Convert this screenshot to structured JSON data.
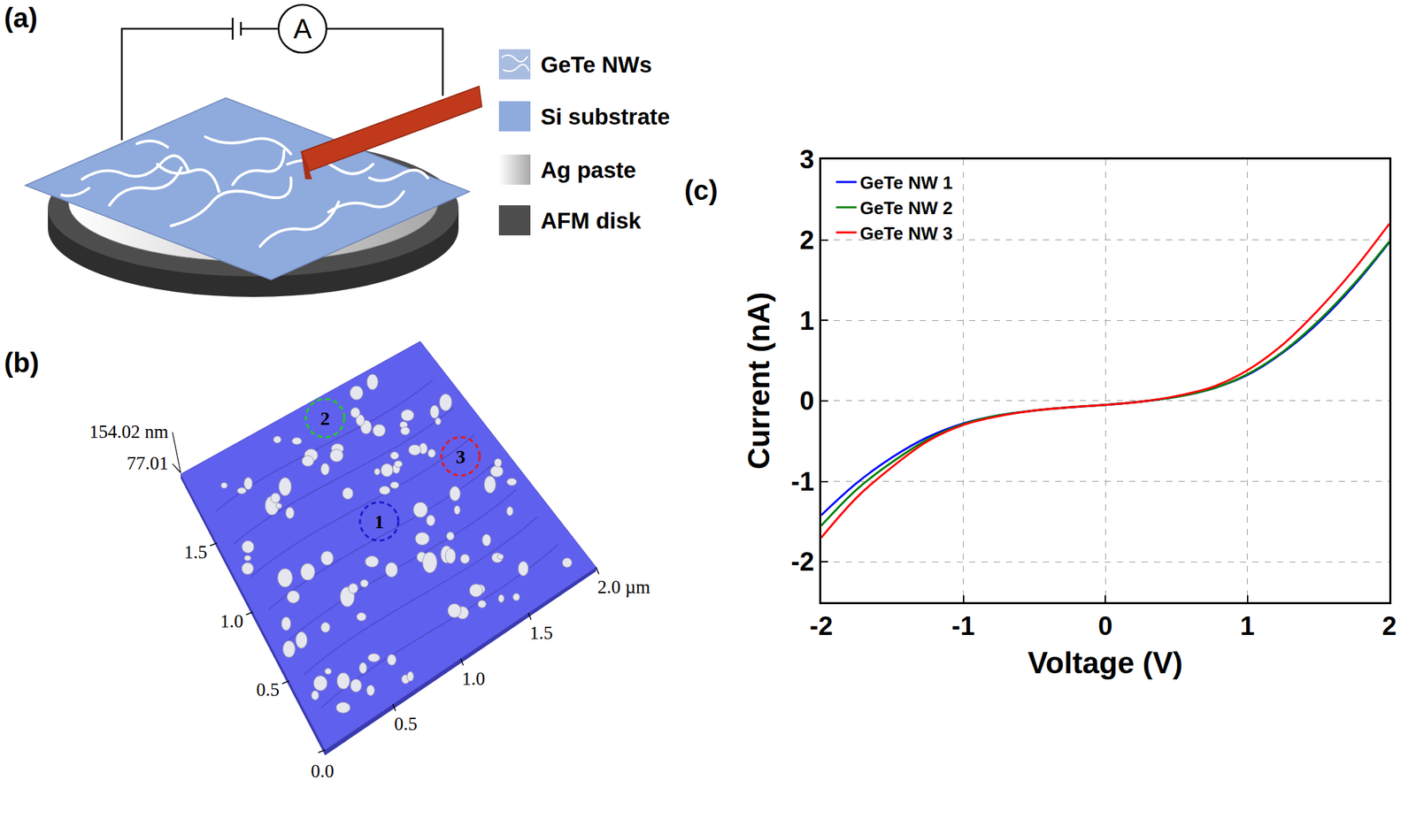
{
  "panels": {
    "a": {
      "label": "(a)",
      "ammeter": "A",
      "legend": [
        {
          "label": "GeTe NWs",
          "color": "#a9bde0"
        },
        {
          "label": "Si substrate",
          "color": "#8faadc"
        },
        {
          "label": "Ag paste",
          "color": "#a8a8a8"
        },
        {
          "label": "AFM disk",
          "color": "#4d4d4d"
        }
      ]
    },
    "b": {
      "label": "(b)",
      "color": "#6060ee",
      "xlim": [
        0,
        2.0
      ],
      "ylim": [
        0,
        2.0
      ],
      "x_ticks": [
        {
          "value": 0.5,
          "label": "0.5"
        },
        {
          "value": 1.0,
          "label": "1.0"
        },
        {
          "value": 1.5,
          "label": "1.5"
        },
        {
          "value": 2.0,
          "label": "2.0 µm"
        }
      ],
      "y_ticks": [
        {
          "value": 0,
          "label": "0.0"
        },
        {
          "value": 0.5,
          "label": "0.5"
        },
        {
          "value": 1.0,
          "label": "1.0"
        },
        {
          "value": 1.5,
          "label": "1.5"
        }
      ],
      "z_ticks": [
        {
          "value": 77.01,
          "label": "77.01"
        },
        {
          "value": 154.02,
          "label": "154.02 nm"
        }
      ],
      "markers": [
        {
          "label": "1",
          "color": "#1a1acc"
        },
        {
          "label": "2",
          "color": "#22cc22"
        },
        {
          "label": "3",
          "color": "#e01a1a"
        }
      ]
    },
    "c": {
      "label": "(c)"
    }
  },
  "chart_data": {
    "type": "line",
    "x_label": "Voltage (V)",
    "y_label": "Current (nA)",
    "x": [
      -2,
      -1.75,
      -1.5,
      -1.25,
      -1,
      -0.75,
      -0.5,
      -0.25,
      0,
      0.25,
      0.5,
      0.75,
      1,
      1.25,
      1.5,
      1.75,
      2
    ],
    "series": [
      {
        "name": "GeTe NW 1",
        "color": "#0000ff",
        "values": [
          -1.42,
          -1.02,
          -0.7,
          -0.45,
          -0.28,
          -0.18,
          -0.12,
          -0.08,
          -0.05,
          -0.01,
          0.05,
          0.15,
          0.32,
          0.6,
          0.97,
          1.43,
          1.97
        ]
      },
      {
        "name": "GeTe NW 2",
        "color": "#008000",
        "values": [
          -1.55,
          -1.1,
          -0.76,
          -0.48,
          -0.29,
          -0.18,
          -0.12,
          -0.08,
          -0.05,
          -0.01,
          0.05,
          0.15,
          0.33,
          0.61,
          0.99,
          1.45,
          1.98
        ]
      },
      {
        "name": "GeTe NW 3",
        "color": "#ff0000",
        "values": [
          -1.7,
          -1.2,
          -0.82,
          -0.5,
          -0.3,
          -0.19,
          -0.12,
          -0.08,
          -0.05,
          -0.01,
          0.06,
          0.17,
          0.38,
          0.7,
          1.13,
          1.63,
          2.2
        ]
      }
    ],
    "xlim": [
      -2,
      2
    ],
    "xticks": [
      -2,
      -1,
      0,
      1,
      2
    ],
    "ylim": [
      -2.5,
      3
    ],
    "yticks": [
      -2,
      -1,
      0,
      1,
      2,
      3
    ],
    "grid": true,
    "legend": "upper left",
    "line_style": "solid"
  }
}
